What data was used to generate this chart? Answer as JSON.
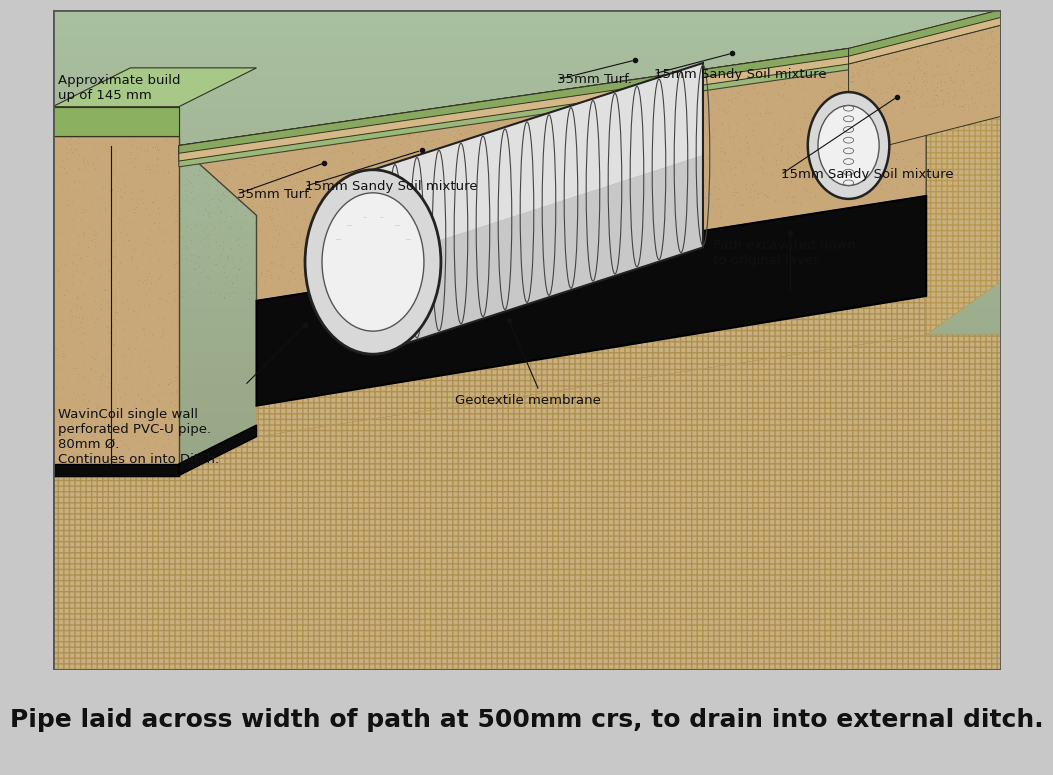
{
  "caption": "Pipe laid across width of path at 500mm crs, to drain into external ditch.",
  "caption_fontsize": 18,
  "ann_fontsize": 9.5,
  "bg_green_top": "#a8bfa0",
  "bg_green_bot": "#7a9870",
  "soil_sandy": "#c8a878",
  "soil_dark": "#b89060",
  "soil_sandy_side": "#c0a070",
  "native_hatch": "#c8b080",
  "native_hatch_edge": "#b89850",
  "geotex_black": "#111111",
  "turf_green": "#a0b888",
  "turf_side": "#88a068",
  "sandy_layer": "#d4b888",
  "pipe_white": "#f0f0f0",
  "pipe_grey": "#d0d0d0",
  "pipe_dark": "#888888",
  "ann_color": "#111111",
  "border_color": "#555555",
  "caption_bg": "#ffffff",
  "fig_bg": "#c8c8c8"
}
